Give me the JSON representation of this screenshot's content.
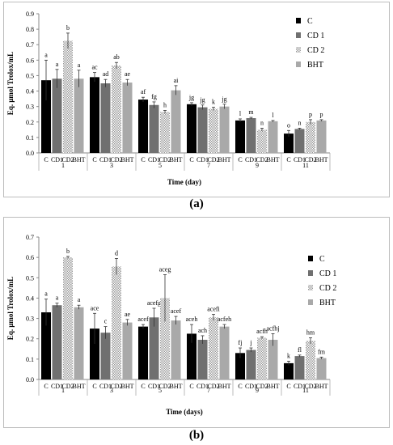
{
  "panels": [
    {
      "label": "(a)",
      "chart_data": {
        "type": "bar",
        "ylabel": "Eq. μmol Trolox/mL",
        "xlabel": "Time (day)",
        "ylim": [
          0,
          0.9
        ],
        "yticks": [
          "0.0",
          "0.1",
          "0.2",
          "0.3",
          "0.4",
          "0.5",
          "0.6",
          "0.7",
          "0.8",
          "0.9"
        ],
        "groups": [
          "1",
          "3",
          "5",
          "7",
          "9",
          "11"
        ],
        "bar_labels": [
          "C",
          "CD1",
          "CD2",
          "BHT"
        ],
        "legend": [
          "C",
          "CD 1",
          "CD 2",
          "BHT"
        ],
        "legend_position": "right",
        "series": [
          {
            "name": "C",
            "color": "#000000",
            "pattern": "solid",
            "values": [
              0.47,
              0.49,
              0.345,
              0.315,
              0.21,
              0.125
            ],
            "errors": [
              0.13,
              0.03,
              0.015,
              0.01,
              0.01,
              0.02
            ],
            "letters": [
              "a",
              "ac",
              "af",
              "jg",
              "l",
              "o"
            ]
          },
          {
            "name": "CD 1",
            "color": "#707070",
            "pattern": "solid",
            "values": [
              0.48,
              0.45,
              0.31,
              0.295,
              0.225,
              0.155
            ],
            "errors": [
              0.06,
              0.025,
              0.02,
              0.015,
              0.005,
              0.005
            ],
            "letters": [
              "a",
              "ad",
              "fg",
              "jg",
              "m",
              "n"
            ]
          },
          {
            "name": "CD 2",
            "color": "#cccccc",
            "pattern": "dotted",
            "values": [
              0.725,
              0.565,
              0.265,
              0.285,
              0.15,
              0.2
            ],
            "errors": [
              0.05,
              0.02,
              0.01,
              0.01,
              0.01,
              0.015
            ],
            "letters": [
              "b",
              "ab",
              "h",
              "k",
              "n",
              "p"
            ]
          },
          {
            "name": "BHT",
            "color": "#a9a9a9",
            "pattern": "solid",
            "values": [
              0.48,
              0.455,
              0.405,
              0.3,
              0.205,
              0.21
            ],
            "errors": [
              0.055,
              0.02,
              0.03,
              0.015,
              0.005,
              0.005
            ],
            "letters": [
              "a",
              "ae",
              "ai",
              "jg",
              "l",
              "p"
            ]
          }
        ]
      }
    },
    {
      "label": "(b)",
      "chart_data": {
        "type": "bar",
        "ylabel": "Eq. μmol Trolox/mL",
        "xlabel": "Time (days)",
        "ylim": [
          0,
          0.7
        ],
        "yticks": [
          "0.0",
          "0.1",
          "0.2",
          "0.3",
          "0.4",
          "0.5",
          "0.6",
          "0.7"
        ],
        "groups": [
          "1",
          "3",
          "5",
          "7",
          "9",
          "11"
        ],
        "bar_labels": [
          "C",
          "CD1",
          "CD2",
          "BHT"
        ],
        "legend": [
          "C",
          "CD 1",
          "CD 2",
          "BHT"
        ],
        "legend_position": "right",
        "series": [
          {
            "name": "C",
            "color": "#000000",
            "pattern": "solid",
            "values": [
              0.33,
              0.25,
              0.26,
              0.225,
              0.13,
              0.08
            ],
            "errors": [
              0.065,
              0.075,
              0.01,
              0.045,
              0.025,
              0.01
            ],
            "letters": [
              "a",
              "ace",
              "acef",
              "aceh",
              "fj",
              "k"
            ]
          },
          {
            "name": "CD 1",
            "color": "#707070",
            "pattern": "solid",
            "values": [
              0.365,
              0.23,
              0.305,
              0.195,
              0.145,
              0.115
            ],
            "errors": [
              0.01,
              0.03,
              0.045,
              0.02,
              0.01,
              0.005
            ],
            "letters": [
              "a",
              "c",
              "acefg",
              "ach",
              "j",
              "fl"
            ]
          },
          {
            "name": "CD 2",
            "color": "#cccccc",
            "pattern": "dotted",
            "values": [
              0.6,
              0.555,
              0.4,
              0.305,
              0.205,
              0.19
            ],
            "errors": [
              0.005,
              0.04,
              0.115,
              0.015,
              0.005,
              0.015
            ],
            "letters": [
              "b",
              "d",
              "aceg",
              "acefi",
              "acfh",
              "hm"
            ]
          },
          {
            "name": "BHT",
            "color": "#a9a9a9",
            "pattern": "solid",
            "values": [
              0.355,
              0.28,
              0.29,
              0.26,
              0.195,
              0.105
            ],
            "errors": [
              0.01,
              0.015,
              0.02,
              0.01,
              0.03,
              0.005
            ],
            "letters": [
              "a",
              "ae",
              "acef",
              "acfeh",
              "acfhj",
              "fm"
            ]
          }
        ]
      }
    }
  ]
}
